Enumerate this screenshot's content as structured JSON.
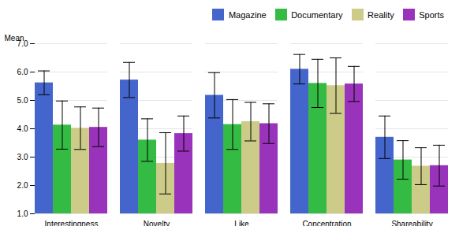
{
  "chart_data": {
    "type": "bar",
    "categories": [
      "Interestingness",
      "Novelty",
      "Like",
      "Concentration",
      "Shareability"
    ],
    "series": [
      {
        "name": "Magazine",
        "color": "#4466cc",
        "values": [
          5.62,
          5.72,
          5.18,
          6.1,
          3.7
        ],
        "errors": [
          0.42,
          0.62,
          0.8,
          0.52,
          0.75
        ]
      },
      {
        "name": "Documentary",
        "color": "#33bb44",
        "values": [
          4.13,
          3.6,
          4.15,
          5.6,
          2.9
        ],
        "errors": [
          0.85,
          0.75,
          0.88,
          0.85,
          0.68
        ]
      },
      {
        "name": "Reality",
        "color": "#cccc88",
        "values": [
          4.02,
          2.78,
          4.25,
          5.52,
          2.68
        ],
        "errors": [
          0.75,
          1.08,
          0.68,
          0.98,
          0.65
        ]
      },
      {
        "name": "Sports",
        "color": "#9933bb",
        "values": [
          4.05,
          3.83,
          4.18,
          5.58,
          2.7
        ],
        "errors": [
          0.68,
          0.62,
          0.7,
          0.62,
          0.72
        ]
      }
    ],
    "ylabel": "Mean",
    "ylim": [
      1,
      7
    ],
    "yticks": [
      1,
      2,
      3,
      4,
      5,
      6,
      7
    ],
    "grid": true,
    "legend": "upper right"
  }
}
